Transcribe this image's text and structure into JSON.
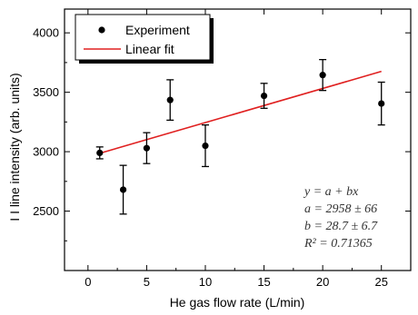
{
  "chart_data": {
    "type": "scatter",
    "xlabel": "He gas flow rate (L/min)",
    "ylabel": "I I line intensity (arb. units)",
    "xlim": [
      -2,
      27.5
    ],
    "ylim": [
      2000,
      4200
    ],
    "x_ticks": [
      0,
      5,
      10,
      15,
      20,
      25
    ],
    "y_ticks": [
      2500,
      3000,
      3500,
      4000
    ],
    "grid": false,
    "legend_position": "top-left",
    "series": [
      {
        "name": "Experiment",
        "kind": "points-with-error-bars",
        "color": "#000000",
        "points": [
          {
            "x": 1,
            "y": 2990,
            "err": 50
          },
          {
            "x": 3,
            "y": 2680,
            "err": 205
          },
          {
            "x": 5,
            "y": 3030,
            "err": 130
          },
          {
            "x": 7,
            "y": 3435,
            "err": 170
          },
          {
            "x": 10,
            "y": 3050,
            "err": 175
          },
          {
            "x": 15,
            "y": 3470,
            "err": 105
          },
          {
            "x": 20,
            "y": 3645,
            "err": 130
          },
          {
            "x": 25,
            "y": 3405,
            "err": 180
          }
        ]
      },
      {
        "name": "Linear fit",
        "kind": "line",
        "color": "#e02020",
        "intercept": 2958,
        "slope": 28.7,
        "x_range": [
          1,
          25
        ]
      }
    ],
    "annotation": {
      "line1": "y = a + bx",
      "line2": "a = 2958 ± 66",
      "line3": "b = 28.7 ± 6.7",
      "line4": "R² = 0.71365"
    }
  }
}
